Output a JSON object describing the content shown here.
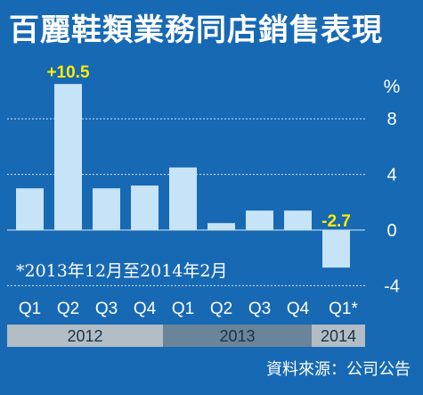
{
  "title": "百麗鞋類業務同店銷售表現",
  "footnote": "*2013年12月至2014年2月",
  "source": "資料來源：公司公告",
  "chart_data": {
    "type": "bar",
    "categories": [
      "Q1",
      "Q2",
      "Q3",
      "Q4",
      "Q1",
      "Q2",
      "Q3",
      "Q4",
      "Q1*"
    ],
    "values": [
      3.0,
      10.5,
      3.0,
      3.2,
      4.5,
      0.5,
      1.4,
      1.4,
      -2.7
    ],
    "data_labels": [
      {
        "index": 1,
        "text": "+10.5"
      },
      {
        "index": 8,
        "text": "-2.7"
      }
    ],
    "year_groups": [
      {
        "label": "2012",
        "span": [
          0,
          3
        ]
      },
      {
        "label": "2013",
        "span": [
          4,
          7
        ]
      },
      {
        "label": "2014",
        "span": [
          8,
          8
        ]
      }
    ],
    "yunit": "%",
    "yticks": [
      8,
      4,
      0,
      -4
    ],
    "ytick_labels": [
      "8",
      "4",
      "0",
      "-4"
    ],
    "ylim": [
      -4,
      11
    ],
    "grid": true,
    "colors": {
      "background": "#1769b4",
      "bar": "#c7e3f7",
      "label_highlight": "#ffeb00",
      "year_band_light": "#b2bdc6",
      "year_band_dark": "#6a8499"
    }
  }
}
